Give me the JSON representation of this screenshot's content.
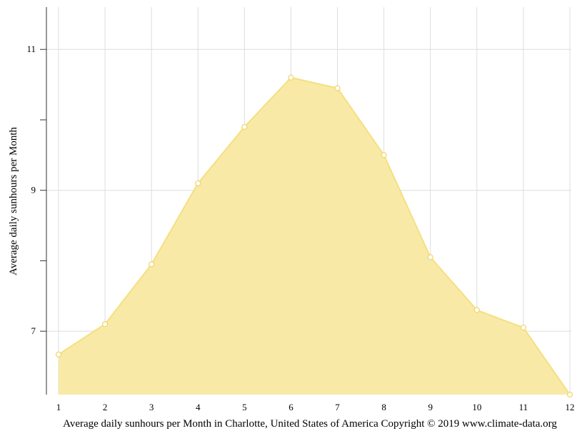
{
  "chart_data": {
    "type": "area",
    "title": "",
    "xlabel": "Average daily sunhours per Month in Charlotte, United States of America Copyright © 2019 www.climate-data.org",
    "ylabel": "Average daily sunhours per Month",
    "x": [
      1,
      2,
      3,
      4,
      5,
      6,
      7,
      8,
      9,
      10,
      11,
      12
    ],
    "series": [
      {
        "values": [
          6.67,
          7.1,
          7.95,
          9.1,
          9.9,
          10.6,
          10.45,
          9.5,
          8.05,
          7.3,
          7.05,
          6.1
        ]
      }
    ],
    "ylim": [
      6.1,
      11.6
    ],
    "xlim": [
      1,
      12
    ],
    "y_ticks": [
      7,
      9,
      11
    ],
    "y_minor_ticks": [
      8,
      10
    ],
    "x_ticks": [
      "1",
      "2",
      "3",
      "4",
      "5",
      "6",
      "7",
      "8",
      "9",
      "10",
      "11",
      "12"
    ],
    "grid": true,
    "legend": "none",
    "colors": {
      "fill": "#f8eaa6",
      "line": "#f5df80",
      "marker_stroke": "#f0d468",
      "marker_fill": "#ffffff",
      "grid": "#dddddd",
      "axis": "#333333"
    }
  }
}
